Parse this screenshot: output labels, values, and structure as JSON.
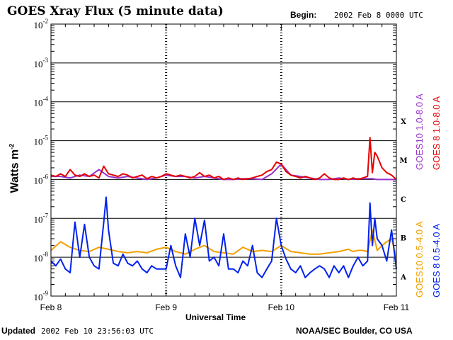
{
  "header": {
    "title": "GOES Xray Flux (5 minute data)",
    "begin_label": "Begin:",
    "begin_value": "2002 Feb 8 0000 UTC"
  },
  "footer": {
    "updated_label": "Updated",
    "updated_value": "2002 Feb 10 23:56:03 UTC",
    "source": "NOAA/SEC Boulder, CO USA"
  },
  "chart_data": {
    "type": "line",
    "title": "GOES Xray Flux (5 minute data)",
    "xlabel": "Universal Time",
    "ylabel": "Watts m",
    "ylabel_sup": "-2",
    "y_scale": "log",
    "ylim": [
      1e-09,
      0.01
    ],
    "y_ticks": [
      {
        "base": "10",
        "exp": "-2"
      },
      {
        "base": "10",
        "exp": "-3"
      },
      {
        "base": "10",
        "exp": "-4"
      },
      {
        "base": "10",
        "exp": "-5"
      },
      {
        "base": "10",
        "exp": "-6"
      },
      {
        "base": "10",
        "exp": "-7"
      },
      {
        "base": "10",
        "exp": "-8"
      },
      {
        "base": "10",
        "exp": "-9"
      }
    ],
    "xlim": [
      0,
      72
    ],
    "x_ticks": [
      "Feb 8",
      "Feb 9",
      "Feb 10",
      "Feb 11"
    ],
    "flare_classes": [
      "X",
      "M",
      "C",
      "B",
      "A"
    ],
    "grid": true,
    "series": [
      {
        "name": "GOES10 0.5-4.0 A",
        "color": "#f2a000",
        "x": [
          0,
          2,
          4,
          6,
          8,
          10,
          12,
          14,
          16,
          18,
          20,
          22,
          24,
          26,
          28,
          30,
          32,
          34,
          36,
          38,
          40,
          42,
          44,
          46,
          48,
          50,
          52,
          54,
          56,
          58,
          60,
          62,
          63,
          64,
          65,
          66,
          67,
          68,
          69,
          70,
          71,
          72
        ],
        "values": [
          1.5e-08,
          2.5e-08,
          1.8e-08,
          1.5e-08,
          1.4e-08,
          1.8e-08,
          1.6e-08,
          1.4e-08,
          1.3e-08,
          1.4e-08,
          1.3e-08,
          1.6e-08,
          1.8e-08,
          1.4e-08,
          1.2e-08,
          1.6e-08,
          2e-08,
          1.4e-08,
          1.3e-08,
          1.2e-08,
          1.8e-08,
          1.4e-08,
          1.5e-08,
          1.4e-08,
          2e-08,
          1.4e-08,
          1.3e-08,
          1.2e-08,
          1.2e-08,
          1.3e-08,
          1.4e-08,
          1.6e-08,
          1.4e-08,
          1.5e-08,
          1.5e-08,
          1.4e-08,
          5e-08,
          1.5e-08,
          2e-08,
          2.5e-08,
          3e-08,
          1e-08
        ]
      },
      {
        "name": "GOES10 1.0-8.0 A",
        "color": "#9933cc",
        "x": [
          0,
          2,
          4,
          6,
          8,
          10,
          12,
          14,
          16,
          18,
          20,
          22,
          24,
          26,
          28,
          30,
          32,
          34,
          36,
          38,
          40,
          42,
          44,
          46,
          48,
          50,
          52,
          54,
          56,
          58,
          60,
          62,
          64,
          66,
          67,
          68,
          69,
          70,
          71,
          72
        ],
        "values": [
          1.2e-06,
          1.2e-06,
          1.1e-06,
          1.3e-06,
          1.2e-06,
          1.8e-06,
          1.2e-06,
          1.1e-06,
          1.2e-06,
          1.1e-06,
          1e-06,
          1.1e-06,
          1.3e-06,
          1.2e-06,
          1.2e-06,
          1.1e-06,
          1.2e-06,
          1.1e-06,
          1e-06,
          1e-06,
          1.05e-06,
          1.05e-06,
          1e-06,
          1.4e-06,
          2.5e-06,
          1.3e-06,
          1.2e-06,
          1.1e-06,
          1e-06,
          1e-06,
          1.1e-06,
          1e-06,
          1.05e-06,
          1.05e-06,
          1.05e-06,
          1e-06,
          1e-06,
          1e-06,
          1e-06,
          1e-06
        ]
      },
      {
        "name": "GOES 8 1.0-8.0 A",
        "color": "#e60000",
        "x": [
          0,
          1,
          2,
          3,
          4,
          5,
          6,
          7,
          8,
          9,
          10,
          11,
          12,
          13,
          14,
          15,
          16,
          17,
          18,
          19,
          20,
          21,
          22,
          23,
          24,
          25,
          26,
          27,
          28,
          29,
          30,
          31,
          32,
          33,
          34,
          35,
          36,
          37,
          38,
          39,
          40,
          41,
          42,
          43,
          44,
          45,
          46,
          47,
          48,
          49,
          50,
          51,
          52,
          53,
          54,
          55,
          56,
          57,
          58,
          59,
          60,
          61,
          62,
          63,
          64,
          65,
          66,
          66.5,
          67,
          67.5,
          68,
          69,
          70,
          71,
          72
        ],
        "values": [
          1.3e-06,
          1.2e-06,
          1.4e-06,
          1.2e-06,
          1.8e-06,
          1.3e-06,
          1.2e-06,
          1.4e-06,
          1.2e-06,
          1.3e-06,
          1.1e-06,
          2.2e-06,
          1.4e-06,
          1.3e-06,
          1.2e-06,
          1.4e-06,
          1.3e-06,
          1.1e-06,
          1.2e-06,
          1.3e-06,
          1.05e-06,
          1.2e-06,
          1.1e-06,
          1.2e-06,
          1.4e-06,
          1.3e-06,
          1.2e-06,
          1.3e-06,
          1.2e-06,
          1.1e-06,
          1.2e-06,
          1.5e-06,
          1.2e-06,
          1.3e-06,
          1.1e-06,
          1.2e-06,
          1e-06,
          1.1e-06,
          1e-06,
          1.1e-06,
          1e-06,
          1.05e-06,
          1.1e-06,
          1.2e-06,
          1.3e-06,
          1.6e-06,
          1.8e-06,
          2.8e-06,
          2.5e-06,
          1.6e-06,
          1.3e-06,
          1.2e-06,
          1.1e-06,
          1.2e-06,
          1.1e-06,
          1e-06,
          1.1e-06,
          1.4e-06,
          1.1e-06,
          1e-06,
          1e-06,
          1.1e-06,
          1e-06,
          1.1e-06,
          1e-06,
          1.1e-06,
          1.2e-06,
          1.2e-05,
          1.5e-06,
          5e-06,
          4e-06,
          2e-06,
          1.5e-06,
          1.3e-06,
          1e-06
        ]
      },
      {
        "name": "GOES 8 0.5-4.0 A",
        "color": "#0022ee",
        "x": [
          0,
          1,
          2,
          3,
          4,
          5,
          6,
          7,
          8,
          9,
          10,
          11,
          11.5,
          12,
          13,
          14,
          15,
          16,
          17,
          18,
          19,
          20,
          21,
          22,
          23,
          24,
          25,
          26,
          27,
          28,
          29,
          30,
          31,
          32,
          33,
          34,
          35,
          36,
          37,
          38,
          39,
          40,
          41,
          42,
          43,
          44,
          45,
          46,
          47,
          48,
          49,
          50,
          51,
          52,
          53,
          54,
          55,
          56,
          57,
          58,
          59,
          60,
          61,
          62,
          63,
          64,
          65,
          66,
          66.5,
          67,
          67.5,
          68,
          69,
          70,
          71,
          72
        ],
        "values": [
          8e-09,
          6e-09,
          9e-09,
          5e-09,
          4e-09,
          8e-08,
          1e-08,
          7e-08,
          1e-08,
          6e-09,
          5e-09,
          8e-08,
          3.5e-07,
          5e-08,
          7e-09,
          6e-09,
          1.2e-08,
          7e-09,
          6e-09,
          8e-09,
          5e-09,
          4e-09,
          6e-09,
          5e-09,
          5e-09,
          5e-09,
          2e-08,
          6e-09,
          3e-09,
          4e-08,
          1e-08,
          1e-07,
          2e-08,
          9e-08,
          8e-09,
          1e-08,
          6e-09,
          4e-08,
          5e-09,
          5e-09,
          4e-09,
          8e-09,
          6e-09,
          2e-08,
          4e-09,
          3e-09,
          5e-09,
          8e-09,
          1e-07,
          2e-08,
          9e-09,
          5e-09,
          4e-09,
          6e-09,
          3e-09,
          4e-09,
          5e-09,
          6e-09,
          5e-09,
          3e-09,
          6e-09,
          4e-09,
          6e-09,
          3e-09,
          6e-09,
          1e-08,
          6e-09,
          8e-09,
          2.5e-07,
          2e-08,
          1e-07,
          3e-08,
          2e-08,
          8e-09,
          5e-08,
          5e-09
        ]
      }
    ]
  }
}
